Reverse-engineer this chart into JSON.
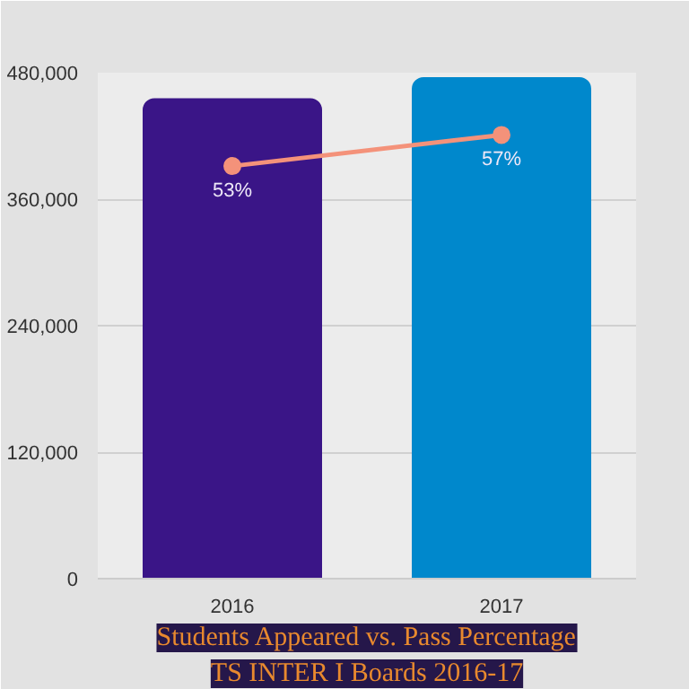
{
  "chart_data": {
    "type": "bar",
    "title": "Students Appeared vs. Pass Percentage",
    "subtitle": "TS INTER I Boards 2016-17",
    "categories": [
      "2016",
      "2017"
    ],
    "series": [
      {
        "colors": [
          "#3a1587",
          "#0088cc"
        ],
        "values": [
          455000,
          475000
        ]
      },
      {
        "type": "line",
        "axis": "y2",
        "color": "#f4927a",
        "values": [
          53,
          57
        ],
        "value_labels": [
          "53%",
          "57%"
        ]
      }
    ],
    "ylim": [
      0,
      480000
    ],
    "yticks": [
      {
        "value": 0,
        "label": "0"
      },
      {
        "value": 120000,
        "label": "120,000"
      },
      {
        "value": 240000,
        "label": "240,000"
      },
      {
        "value": 360000,
        "label": "360,000"
      },
      {
        "value": 480000,
        "label": "480,000"
      }
    ],
    "y2lim": [
      0,
      65
    ],
    "tick_labels": [
      "x",
      "y"
    ],
    "grid": "y",
    "marker": "circle",
    "line_style": "solid"
  }
}
